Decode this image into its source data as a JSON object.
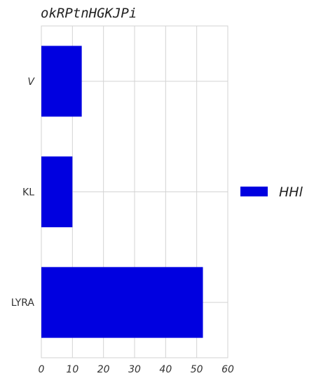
{
  "chart_data": {
    "type": "bar",
    "orientation": "horizontal",
    "title": "okRPtnHGKJPi",
    "xlabel": "",
    "ylabel": "",
    "categories": [
      "V",
      "KL",
      "LYRA"
    ],
    "series": [
      {
        "name": "HHl",
        "values": [
          13,
          10,
          52
        ],
        "color": "#0000e0"
      }
    ],
    "xlim": [
      0,
      60
    ],
    "xticks": [
      "0",
      "10",
      "20",
      "30",
      "40",
      "50",
      "60"
    ],
    "grid": true,
    "legend": "right"
  }
}
